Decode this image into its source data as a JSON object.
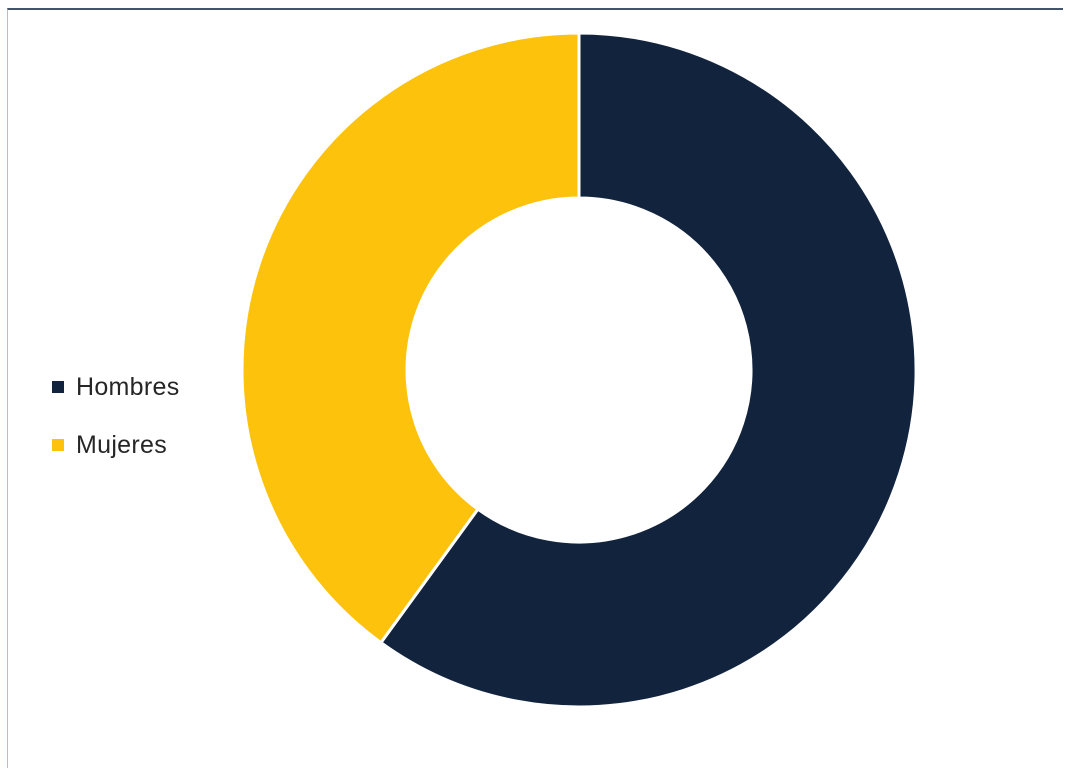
{
  "chart_data": {
    "type": "pie",
    "style": "donut",
    "title": "",
    "categories": [
      "Hombres",
      "Mujeres"
    ],
    "values": [
      60,
      40
    ],
    "unit": "percent",
    "legend_position": "left",
    "colors": [
      "#12243d",
      "#fdc20b"
    ]
  }
}
